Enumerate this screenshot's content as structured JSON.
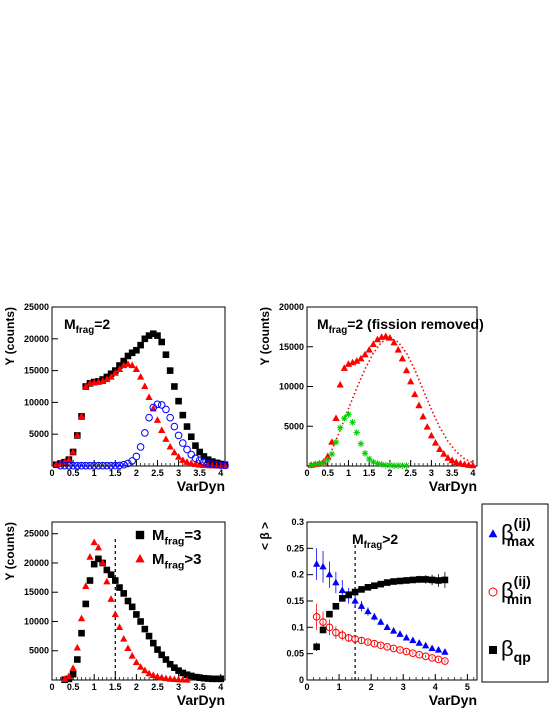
{
  "chart_data": [
    {
      "type": "scatter",
      "xlabel": "VarDyn",
      "ylabel": "Y (counts)",
      "xlim": [
        0,
        4.1
      ],
      "ylim": [
        0,
        25000
      ],
      "xticks": [
        "0",
        "0.5",
        "1",
        "1.5",
        "2",
        "2.5",
        "3",
        "3.5",
        "4"
      ],
      "yticks": [
        "5000",
        "10000",
        "15000",
        "20000",
        "25000"
      ],
      "annotation": {
        "base": "M",
        "sub": "frag",
        "rest": "=2"
      },
      "series": [
        {
          "marker": "square",
          "color": "#000000",
          "x": [
            0.1,
            0.2,
            0.3,
            0.4,
            0.5,
            0.6,
            0.7,
            0.8,
            0.9,
            1.0,
            1.1,
            1.2,
            1.3,
            1.4,
            1.5,
            1.6,
            1.7,
            1.8,
            1.9,
            2.0,
            2.1,
            2.2,
            2.3,
            2.4,
            2.5,
            2.6,
            2.7,
            2.8,
            2.9,
            3.0,
            3.1,
            3.2,
            3.3,
            3.4,
            3.5,
            3.6,
            3.7,
            3.8,
            3.9,
            4.0,
            4.1
          ],
          "y": [
            200,
            400,
            600,
            1000,
            2200,
            4800,
            7800,
            12500,
            13000,
            13200,
            13300,
            13600,
            14000,
            14500,
            15000,
            15800,
            16500,
            17300,
            17800,
            18200,
            19000,
            20000,
            20500,
            20800,
            20500,
            19500,
            17500,
            15000,
            12500,
            10200,
            8000,
            6200,
            4600,
            3200,
            2200,
            1500,
            1000,
            700,
            500,
            300,
            200
          ]
        },
        {
          "marker": "triangle",
          "color": "#ff0000",
          "x": [
            0.1,
            0.2,
            0.3,
            0.4,
            0.5,
            0.6,
            0.7,
            0.8,
            0.9,
            1.0,
            1.1,
            1.2,
            1.3,
            1.4,
            1.5,
            1.6,
            1.7,
            1.8,
            1.9,
            2.0,
            2.1,
            2.2,
            2.3,
            2.4,
            2.5,
            2.6,
            2.7,
            2.8,
            2.9,
            3.0,
            3.1,
            3.2,
            3.3,
            3.4,
            3.5,
            3.6,
            3.7,
            3.8,
            3.9,
            4.0,
            4.1
          ],
          "y": [
            200,
            400,
            600,
            1000,
            2200,
            4800,
            7800,
            12500,
            13000,
            13100,
            13200,
            13300,
            13600,
            14000,
            14600,
            15200,
            15800,
            16000,
            15800,
            15200,
            14000,
            12500,
            10800,
            9000,
            7200,
            5600,
            4200,
            3000,
            2100,
            1400,
            900,
            600,
            400,
            250,
            150,
            100,
            60,
            40,
            20,
            10,
            5
          ]
        },
        {
          "marker": "open-circle",
          "color": "#0000ff",
          "x": [
            0.2,
            0.3,
            0.4,
            0.5,
            0.6,
            0.7,
            0.8,
            0.9,
            1.0,
            1.1,
            1.2,
            1.3,
            1.4,
            1.5,
            1.6,
            1.7,
            1.8,
            1.9,
            2.0,
            2.1,
            2.2,
            2.3,
            2.4,
            2.5,
            2.6,
            2.7,
            2.8,
            2.9,
            3.0,
            3.1,
            3.2,
            3.3,
            3.4,
            3.5,
            3.6,
            3.7,
            3.8,
            3.9,
            4.0,
            4.1
          ],
          "y": [
            50,
            50,
            50,
            50,
            50,
            50,
            50,
            50,
            50,
            50,
            50,
            50,
            50,
            60,
            100,
            200,
            400,
            800,
            1500,
            3000,
            5200,
            7600,
            9200,
            9700,
            9600,
            8900,
            7600,
            6200,
            4800,
            3600,
            2600,
            1800,
            1200,
            900,
            600,
            400,
            300,
            200,
            150,
            100
          ]
        }
      ]
    },
    {
      "type": "scatter",
      "xlabel": "VarDyn",
      "ylabel": "Y (counts)",
      "xlim": [
        0,
        4.1
      ],
      "ylim": [
        0,
        20000
      ],
      "xticks": [
        "0",
        "0.5",
        "1",
        "1.5",
        "2",
        "2.5",
        "3",
        "3.5",
        "4"
      ],
      "yticks": [
        "5000",
        "10000",
        "15000",
        "20000"
      ],
      "annotation": {
        "base": "M",
        "sub": "frag",
        "rest": "=2 (fission removed)"
      },
      "series": [
        {
          "marker": "triangle",
          "color": "#ff0000",
          "x": [
            0.1,
            0.2,
            0.3,
            0.4,
            0.5,
            0.6,
            0.7,
            0.8,
            0.9,
            1.0,
            1.1,
            1.2,
            1.3,
            1.4,
            1.5,
            1.6,
            1.7,
            1.8,
            1.9,
            2.0,
            2.1,
            2.2,
            2.3,
            2.4,
            2.5,
            2.6,
            2.7,
            2.8,
            2.9,
            3.0,
            3.1,
            3.2,
            3.3,
            3.4,
            3.5,
            3.6,
            3.7,
            3.8,
            3.9,
            4.0
          ],
          "y": [
            100,
            200,
            300,
            500,
            1200,
            3000,
            6000,
            10200,
            12300,
            12800,
            13000,
            13200,
            13500,
            14000,
            14600,
            15300,
            15900,
            16200,
            16300,
            16100,
            15500,
            14600,
            13500,
            12000,
            10600,
            9000,
            7600,
            6200,
            4900,
            3800,
            2900,
            2100,
            1500,
            1000,
            700,
            450,
            300,
            200,
            100,
            50
          ]
        },
        {
          "marker": "dotted-line",
          "color": "#ff0000",
          "x": [
            0.6,
            0.8,
            1.0,
            1.2,
            1.4,
            1.6,
            1.8,
            2.0,
            2.2,
            2.4,
            2.6,
            2.8,
            3.0,
            3.2,
            3.4,
            3.6,
            3.8,
            4.0
          ],
          "y": [
            2000,
            4500,
            7200,
            9800,
            12200,
            14200,
            15600,
            16100,
            15600,
            14200,
            12100,
            9600,
            7100,
            4900,
            3100,
            1800,
            900,
            400
          ]
        },
        {
          "marker": "star",
          "color": "#00cc00",
          "x": [
            0.1,
            0.2,
            0.3,
            0.4,
            0.5,
            0.6,
            0.7,
            0.8,
            0.9,
            1.0,
            1.1,
            1.2,
            1.3,
            1.4,
            1.5,
            1.6,
            1.7,
            1.8,
            1.9,
            2.0,
            2.1,
            2.2,
            2.3,
            2.4
          ],
          "y": [
            100,
            200,
            300,
            400,
            800,
            1500,
            3000,
            4800,
            6000,
            6500,
            5500,
            4200,
            2800,
            1600,
            900,
            500,
            300,
            200,
            100,
            100,
            50,
            50,
            50,
            50
          ]
        }
      ]
    },
    {
      "type": "scatter",
      "xlabel": "VarDyn",
      "ylabel": "Y (counts)",
      "xlim": [
        0,
        4.1
      ],
      "ylim": [
        0,
        27000
      ],
      "xticks": [
        "0",
        "0.5",
        "1",
        "1.5",
        "2",
        "2.5",
        "3",
        "3.5",
        "4"
      ],
      "yticks": [
        "5000",
        "10000",
        "15000",
        "20000",
        "25000"
      ],
      "vline": 1.5,
      "legend": [
        {
          "marker": "square",
          "color": "#000000",
          "base": "M",
          "sub": "frag",
          "rest": "=3"
        },
        {
          "marker": "triangle",
          "color": "#ff0000",
          "base": "M",
          "sub": "frag",
          "rest": ">3"
        }
      ],
      "series": [
        {
          "marker": "square",
          "color": "#000000",
          "x": [
            0.3,
            0.4,
            0.5,
            0.6,
            0.7,
            0.8,
            0.9,
            1.0,
            1.1,
            1.2,
            1.3,
            1.4,
            1.5,
            1.6,
            1.7,
            1.8,
            1.9,
            2.0,
            2.1,
            2.2,
            2.3,
            2.4,
            2.5,
            2.6,
            2.7,
            2.8,
            2.9,
            3.0,
            3.1,
            3.2,
            3.3,
            3.4,
            3.5,
            3.6,
            3.7,
            3.8,
            3.9,
            4.0
          ],
          "y": [
            50,
            200,
            1000,
            3500,
            8000,
            13000,
            17000,
            19800,
            20700,
            20000,
            18800,
            18000,
            17000,
            15800,
            14800,
            13500,
            12500,
            11200,
            10000,
            8700,
            7500,
            6300,
            5200,
            4300,
            3500,
            2700,
            2100,
            1600,
            1200,
            900,
            700,
            500,
            400,
            300,
            250,
            200,
            200,
            200
          ]
        },
        {
          "marker": "triangle",
          "color": "#ff0000",
          "x": [
            0.3,
            0.4,
            0.5,
            0.6,
            0.7,
            0.8,
            0.9,
            1.0,
            1.1,
            1.2,
            1.3,
            1.4,
            1.5,
            1.6,
            1.7,
            1.8,
            1.9,
            2.0,
            2.1,
            2.2,
            2.3,
            2.4,
            2.5,
            2.6,
            2.7,
            2.8,
            2.9,
            3.0,
            3.1,
            3.2
          ],
          "y": [
            100,
            600,
            2000,
            5500,
            10500,
            16000,
            21000,
            23500,
            22600,
            20000,
            16800,
            13800,
            11200,
            9000,
            7000,
            5400,
            4100,
            3000,
            2200,
            1600,
            1100,
            800,
            550,
            400,
            250,
            150,
            100,
            60,
            30,
            10
          ]
        }
      ]
    },
    {
      "type": "scatter",
      "xlabel": "VarDyn",
      "ylabel": "< β >",
      "xlim": [
        0,
        5.3
      ],
      "ylim": [
        0,
        0.3
      ],
      "xticks": [
        "0",
        "1",
        "2",
        "3",
        "4",
        "5"
      ],
      "yticks": [
        "0",
        "0.05",
        "0.1",
        "0.15",
        "0.2",
        "0.25",
        "0.3"
      ],
      "vline": 1.5,
      "annotation": {
        "base": "M",
        "sub": "frag",
        "rest": ">2"
      },
      "legend": [
        {
          "marker": "triangle",
          "color": "#0000ff",
          "base": "β",
          "sup": "(ij)",
          "sub": "max"
        },
        {
          "marker": "open-circle",
          "color": "#ff0000",
          "base": "β",
          "sup": "(ij)",
          "sub": "min"
        },
        {
          "marker": "square",
          "color": "#000000",
          "base": "β",
          "sub": "qp"
        }
      ],
      "series": [
        {
          "marker": "triangle",
          "color": "#0000ff",
          "x": [
            0.3,
            0.5,
            0.7,
            0.9,
            1.1,
            1.3,
            1.5,
            1.7,
            1.9,
            2.1,
            2.3,
            2.5,
            2.7,
            2.9,
            3.1,
            3.3,
            3.5,
            3.7,
            3.9,
            4.1,
            4.3
          ],
          "y": [
            0.22,
            0.215,
            0.2,
            0.185,
            0.17,
            0.16,
            0.15,
            0.14,
            0.13,
            0.12,
            0.11,
            0.1,
            0.093,
            0.087,
            0.08,
            0.075,
            0.07,
            0.065,
            0.06,
            0.057,
            0.053
          ],
          "err": [
            0.03,
            0.03,
            0.025,
            0.02,
            0.02,
            0.015,
            0.012,
            0.01,
            0.008,
            0.007,
            0.006,
            0.005,
            0.005,
            0.004,
            0.004,
            0.004,
            0.004,
            0.004,
            0.004,
            0.004,
            0.004
          ]
        },
        {
          "marker": "open-circle",
          "color": "#ff0000",
          "x": [
            0.3,
            0.5,
            0.7,
            0.9,
            1.1,
            1.3,
            1.5,
            1.7,
            1.9,
            2.1,
            2.3,
            2.5,
            2.7,
            2.9,
            3.1,
            3.3,
            3.5,
            3.7,
            3.9,
            4.1,
            4.3
          ],
          "y": [
            0.12,
            0.11,
            0.1,
            0.09,
            0.085,
            0.08,
            0.078,
            0.075,
            0.072,
            0.069,
            0.066,
            0.063,
            0.06,
            0.057,
            0.054,
            0.051,
            0.048,
            0.045,
            0.042,
            0.039,
            0.036
          ],
          "err": [
            0.025,
            0.02,
            0.015,
            0.012,
            0.01,
            0.008,
            0.006,
            0.005,
            0.004,
            0.004,
            0.004,
            0.003,
            0.003,
            0.003,
            0.003,
            0.003,
            0.003,
            0.003,
            0.003,
            0.003,
            0.003
          ]
        },
        {
          "marker": "square",
          "color": "#000000",
          "x": [
            0.3,
            0.5,
            0.7,
            0.9,
            1.1,
            1.3,
            1.5,
            1.7,
            1.9,
            2.1,
            2.3,
            2.5,
            2.7,
            2.9,
            3.1,
            3.3,
            3.5,
            3.7,
            3.9,
            4.1,
            4.3
          ],
          "y": [
            0.063,
            0.095,
            0.125,
            0.14,
            0.155,
            0.162,
            0.167,
            0.172,
            0.176,
            0.179,
            0.182,
            0.185,
            0.187,
            0.188,
            0.189,
            0.19,
            0.191,
            0.191,
            0.19,
            0.189,
            0.19
          ],
          "err": [
            0.008,
            0.006,
            0.005,
            0.004,
            0.004,
            0.004,
            0.004,
            0.004,
            0.004,
            0.004,
            0.004,
            0.004,
            0.004,
            0.004,
            0.005,
            0.006,
            0.007,
            0.008,
            0.01,
            0.012,
            0.015
          ]
        }
      ]
    }
  ]
}
